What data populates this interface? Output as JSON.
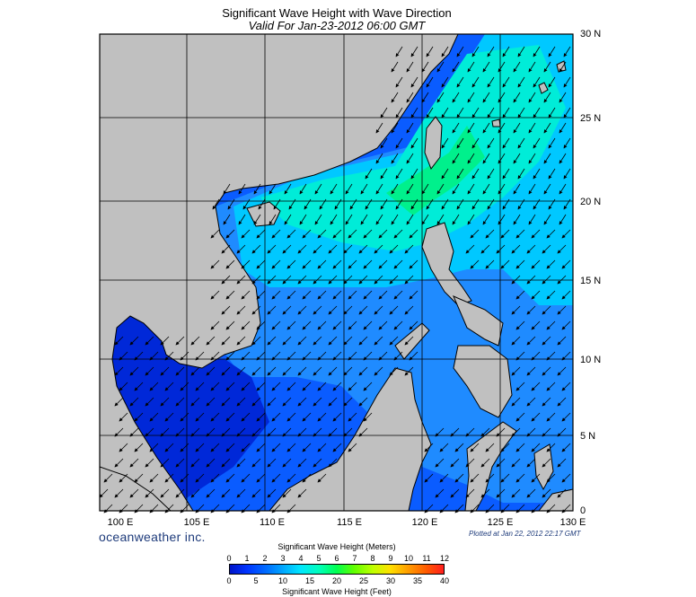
{
  "header": {
    "title": "Significant Wave Height with Wave Direction",
    "subtitle": "Valid For Jan-23-2012 06:00 GMT"
  },
  "map": {
    "lat_labels": [
      "30 N",
      "25 N",
      "20 N",
      "15 N",
      "10 N",
      "5 N",
      "0"
    ],
    "lon_labels": [
      "100 E",
      "105 E",
      "110 E",
      "115 E",
      "120 E",
      "125 E",
      "130 E"
    ],
    "lat_range": [
      0,
      30
    ],
    "lon_range": [
      100,
      130
    ],
    "land_color": "#c0c0c0",
    "wave_direction": "northeast monsoon swell, arrows pointing toward southwest"
  },
  "footer": {
    "brand": "oceanweather inc.",
    "plotted": "Plotted at Jan 22, 2012 22:17 GMT"
  },
  "colorbar": {
    "title_meters": "Significant Wave Height (Meters)",
    "title_feet": "Significant Wave Height (Feet)",
    "meters_ticks": [
      "0",
      "1",
      "2",
      "3",
      "4",
      "5",
      "6",
      "7",
      "8",
      "9",
      "10",
      "11",
      "12"
    ],
    "feet_ticks": [
      "0",
      "5",
      "10",
      "15",
      "20",
      "25",
      "30",
      "35",
      "40"
    ]
  }
}
